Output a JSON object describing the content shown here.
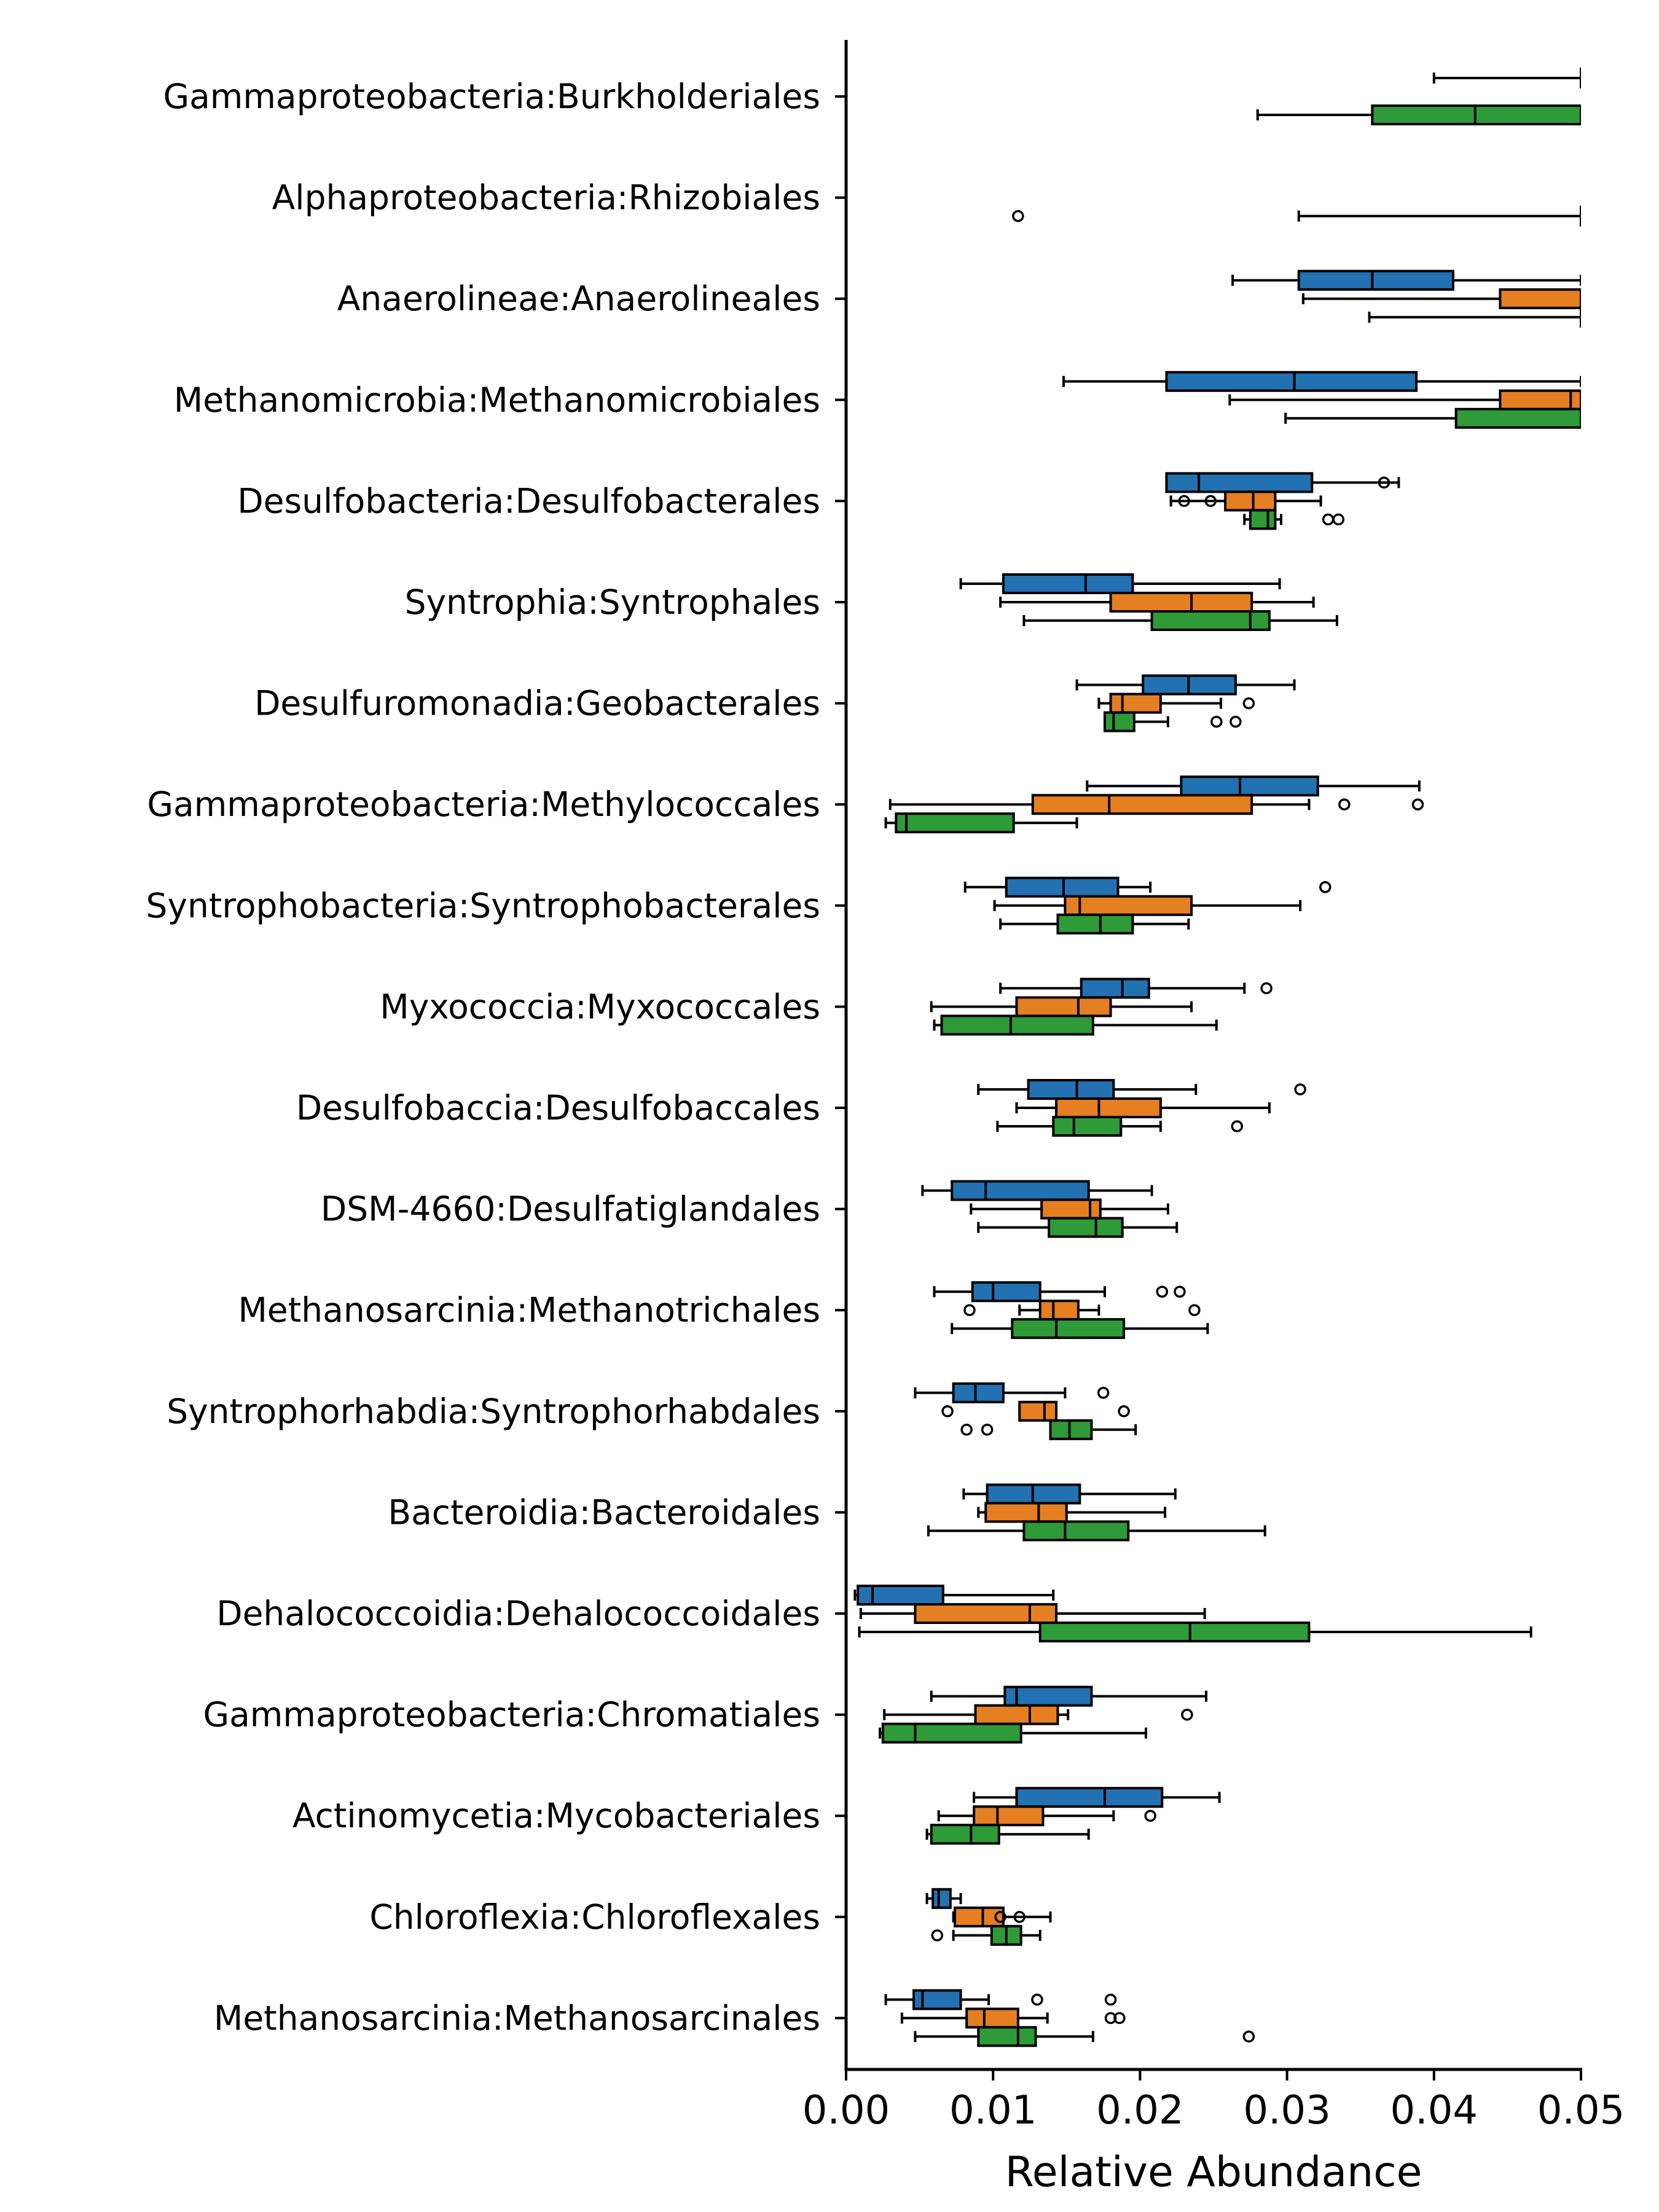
{
  "chart_data": {
    "type": "boxplot",
    "orientation": "horizontal",
    "xlabel": "Relative Abundance",
    "xlim": [
      0.0,
      0.05
    ],
    "xticks": [
      0.0,
      0.01,
      0.02,
      0.03,
      0.04,
      0.05
    ],
    "xtick_labels": [
      "0.00",
      "0.01",
      "0.02",
      "0.03",
      "0.04",
      "0.05"
    ],
    "grid": false,
    "legend": null,
    "series_colors": [
      "#2271b2",
      "#e67e22",
      "#2e9a38"
    ],
    "categories": [
      {
        "label": "Gammaproteobacteria:Burkholderiales",
        "boxes": [
          {
            "wlo": 0.04,
            "q1": 0.05,
            "med": 0.05,
            "q3": 0.05,
            "whi": 0.05
          },
          null,
          {
            "wlo": 0.028,
            "q1": 0.0358,
            "med": 0.0428,
            "q3": 0.05,
            "whi": 0.05
          }
        ]
      },
      {
        "label": "Alphaproteobacteria:Rhizobiales",
        "boxes": [
          null,
          null,
          {
            "wlo": 0.0308,
            "q1": 0.05,
            "med": 0.05,
            "q3": 0.05,
            "whi": 0.05,
            "fliers": [
              0.0117
            ]
          }
        ]
      },
      {
        "label": "Anaerolineae:Anaerolineales",
        "boxes": [
          {
            "wlo": 0.0263,
            "q1": 0.0308,
            "med": 0.0358,
            "q3": 0.0413,
            "whi": 0.05
          },
          {
            "wlo": 0.0311,
            "q1": 0.0445,
            "med": 0.05,
            "q3": 0.05,
            "whi": 0.05
          },
          {
            "wlo": 0.0356,
            "q1": 0.05,
            "med": 0.05,
            "q3": 0.05,
            "whi": 0.05
          }
        ]
      },
      {
        "label": "Methanomicrobia:Methanomicrobiales",
        "boxes": [
          {
            "wlo": 0.0148,
            "q1": 0.0218,
            "med": 0.0305,
            "q3": 0.0388,
            "whi": 0.05
          },
          {
            "wlo": 0.0261,
            "q1": 0.0445,
            "med": 0.0493,
            "q3": 0.05,
            "whi": 0.05
          },
          {
            "wlo": 0.0299,
            "q1": 0.0415,
            "med": 0.05,
            "q3": 0.05,
            "whi": 0.05
          }
        ]
      },
      {
        "label": "Desulfobacteria:Desulfobacterales",
        "boxes": [
          {
            "wlo": 0.0218,
            "q1": 0.0218,
            "med": 0.024,
            "q3": 0.0317,
            "whi": 0.0376,
            "fliers": [
              0.0366
            ]
          },
          {
            "wlo": 0.0221,
            "q1": 0.0258,
            "med": 0.0277,
            "q3": 0.0292,
            "whi": 0.0323,
            "fliers": [
              0.023,
              0.0248
            ]
          },
          {
            "wlo": 0.0271,
            "q1": 0.0275,
            "med": 0.0287,
            "q3": 0.0292,
            "whi": 0.0296,
            "fliers": [
              0.0328,
              0.0335
            ]
          }
        ]
      },
      {
        "label": "Syntrophia:Syntrophales",
        "boxes": [
          {
            "wlo": 0.0078,
            "q1": 0.0107,
            "med": 0.0163,
            "q3": 0.0195,
            "whi": 0.0295
          },
          {
            "wlo": 0.0105,
            "q1": 0.018,
            "med": 0.0235,
            "q3": 0.0276,
            "whi": 0.0318
          },
          {
            "wlo": 0.0121,
            "q1": 0.0208,
            "med": 0.0275,
            "q3": 0.0288,
            "whi": 0.0334
          }
        ]
      },
      {
        "label": "Desulfuromonadia:Geobacterales",
        "boxes": [
          {
            "wlo": 0.0157,
            "q1": 0.0202,
            "med": 0.0233,
            "q3": 0.0265,
            "whi": 0.0305
          },
          {
            "wlo": 0.0172,
            "q1": 0.018,
            "med": 0.0188,
            "q3": 0.0214,
            "whi": 0.0255,
            "fliers": [
              0.0274
            ]
          },
          {
            "wlo": 0.0176,
            "q1": 0.0176,
            "med": 0.0182,
            "q3": 0.0196,
            "whi": 0.0219,
            "fliers": [
              0.0252,
              0.0265
            ]
          }
        ]
      },
      {
        "label": "Gammaproteobacteria:Methylococcales",
        "boxes": [
          {
            "wlo": 0.0164,
            "q1": 0.0228,
            "med": 0.0268,
            "q3": 0.0321,
            "whi": 0.039
          },
          {
            "wlo": 0.003,
            "q1": 0.0127,
            "med": 0.0179,
            "q3": 0.0276,
            "whi": 0.0315,
            "fliers": [
              0.0339,
              0.0389
            ]
          },
          {
            "wlo": 0.0027,
            "q1": 0.0034,
            "med": 0.0041,
            "q3": 0.0114,
            "whi": 0.0157
          }
        ]
      },
      {
        "label": "Syntrophobacteria:Syntrophobacterales",
        "boxes": [
          {
            "wlo": 0.0081,
            "q1": 0.0109,
            "med": 0.0148,
            "q3": 0.0185,
            "whi": 0.0207,
            "fliers": [
              0.0326
            ]
          },
          {
            "wlo": 0.0101,
            "q1": 0.0149,
            "med": 0.0159,
            "q3": 0.0235,
            "whi": 0.0309
          },
          {
            "wlo": 0.0105,
            "q1": 0.0144,
            "med": 0.0173,
            "q3": 0.0195,
            "whi": 0.0233
          }
        ]
      },
      {
        "label": "Myxococcia:Myxococcales",
        "boxes": [
          {
            "wlo": 0.0105,
            "q1": 0.016,
            "med": 0.0188,
            "q3": 0.0206,
            "whi": 0.0271,
            "fliers": [
              0.0286
            ]
          },
          {
            "wlo": 0.0058,
            "q1": 0.0116,
            "med": 0.0158,
            "q3": 0.018,
            "whi": 0.0235
          },
          {
            "wlo": 0.006,
            "q1": 0.0065,
            "med": 0.0112,
            "q3": 0.0168,
            "whi": 0.0252
          }
        ]
      },
      {
        "label": "Desulfobaccia:Desulfobaccales",
        "boxes": [
          {
            "wlo": 0.009,
            "q1": 0.0124,
            "med": 0.0157,
            "q3": 0.0182,
            "whi": 0.0238,
            "fliers": [
              0.0309
            ]
          },
          {
            "wlo": 0.0116,
            "q1": 0.0143,
            "med": 0.0172,
            "q3": 0.0214,
            "whi": 0.0288
          },
          {
            "wlo": 0.0103,
            "q1": 0.0141,
            "med": 0.0155,
            "q3": 0.0187,
            "whi": 0.0214,
            "fliers": [
              0.0266
            ]
          }
        ]
      },
      {
        "label": "DSM-4660:Desulfatiglandales",
        "boxes": [
          {
            "wlo": 0.0052,
            "q1": 0.0072,
            "med": 0.0095,
            "q3": 0.0165,
            "whi": 0.0208
          },
          {
            "wlo": 0.0085,
            "q1": 0.0133,
            "med": 0.0166,
            "q3": 0.0173,
            "whi": 0.0219
          },
          {
            "wlo": 0.009,
            "q1": 0.0138,
            "med": 0.017,
            "q3": 0.0188,
            "whi": 0.0225
          }
        ]
      },
      {
        "label": "Methanosarcinia:Methanotrichales",
        "boxes": [
          {
            "wlo": 0.006,
            "q1": 0.0086,
            "med": 0.01,
            "q3": 0.0132,
            "whi": 0.0176,
            "fliers": [
              0.0215,
              0.0227
            ]
          },
          {
            "wlo": 0.0118,
            "q1": 0.0132,
            "med": 0.0141,
            "q3": 0.0158,
            "whi": 0.0172,
            "fliers": [
              0.0084,
              0.0237
            ]
          },
          {
            "wlo": 0.0072,
            "q1": 0.0113,
            "med": 0.0143,
            "q3": 0.0189,
            "whi": 0.0246
          }
        ]
      },
      {
        "label": "Syntrophorhabdia:Syntrophorhabdales",
        "boxes": [
          {
            "wlo": 0.0047,
            "q1": 0.0073,
            "med": 0.0088,
            "q3": 0.0107,
            "whi": 0.0149,
            "fliers": [
              0.0175
            ]
          },
          {
            "wlo": 0.0118,
            "q1": 0.0118,
            "med": 0.0135,
            "q3": 0.0143,
            "whi": 0.0143,
            "fliers": [
              0.0069,
              0.0189
            ]
          },
          {
            "wlo": 0.0139,
            "q1": 0.0139,
            "med": 0.0152,
            "q3": 0.0167,
            "whi": 0.0197,
            "fliers": [
              0.0082,
              0.0096
            ]
          }
        ]
      },
      {
        "label": "Bacteroidia:Bacteroidales",
        "boxes": [
          {
            "wlo": 0.008,
            "q1": 0.0096,
            "med": 0.0127,
            "q3": 0.0159,
            "whi": 0.0224
          },
          {
            "wlo": 0.009,
            "q1": 0.0095,
            "med": 0.0131,
            "q3": 0.015,
            "whi": 0.0217
          },
          {
            "wlo": 0.0056,
            "q1": 0.0121,
            "med": 0.0149,
            "q3": 0.0192,
            "whi": 0.0285
          }
        ]
      },
      {
        "label": "Dehalococcoidia:Dehalococcoidales",
        "boxes": [
          {
            "wlo": 0.0006,
            "q1": 0.0008,
            "med": 0.0018,
            "q3": 0.0066,
            "whi": 0.0141
          },
          {
            "wlo": 0.001,
            "q1": 0.0047,
            "med": 0.0125,
            "q3": 0.0143,
            "whi": 0.0244
          },
          {
            "wlo": 0.0009,
            "q1": 0.0132,
            "med": 0.0234,
            "q3": 0.0315,
            "whi": 0.0466
          }
        ]
      },
      {
        "label": "Gammaproteobacteria:Chromatiales",
        "boxes": [
          {
            "wlo": 0.0058,
            "q1": 0.0108,
            "med": 0.0116,
            "q3": 0.0167,
            "whi": 0.0245
          },
          {
            "wlo": 0.0026,
            "q1": 0.0088,
            "med": 0.0125,
            "q3": 0.0144,
            "whi": 0.0151,
            "fliers": [
              0.0232
            ]
          },
          {
            "wlo": 0.0023,
            "q1": 0.0025,
            "med": 0.0047,
            "q3": 0.0119,
            "whi": 0.0204
          }
        ]
      },
      {
        "label": "Actinomycetia:Mycobacteriales",
        "boxes": [
          {
            "wlo": 0.0087,
            "q1": 0.0116,
            "med": 0.0176,
            "q3": 0.0215,
            "whi": 0.0254
          },
          {
            "wlo": 0.0063,
            "q1": 0.0087,
            "med": 0.0103,
            "q3": 0.0134,
            "whi": 0.0182,
            "fliers": [
              0.0207
            ]
          },
          {
            "wlo": 0.0055,
            "q1": 0.0058,
            "med": 0.0085,
            "q3": 0.0104,
            "whi": 0.0165
          }
        ]
      },
      {
        "label": "Chloroflexia:Chloroflexales",
        "boxes": [
          {
            "wlo": 0.0055,
            "q1": 0.0059,
            "med": 0.0063,
            "q3": 0.0071,
            "whi": 0.0078
          },
          {
            "wlo": 0.0073,
            "q1": 0.0074,
            "med": 0.0093,
            "q3": 0.0107,
            "whi": 0.0139,
            "fliers": [
              0.0105,
              0.0118
            ]
          },
          {
            "wlo": 0.0073,
            "q1": 0.0099,
            "med": 0.0109,
            "q3": 0.0119,
            "whi": 0.0132,
            "fliers": [
              0.0062
            ]
          }
        ]
      },
      {
        "label": "Methanosarcinia:Methanosarcinales",
        "boxes": [
          {
            "wlo": 0.0027,
            "q1": 0.0046,
            "med": 0.0052,
            "q3": 0.0078,
            "whi": 0.0097,
            "fliers": [
              0.013,
              0.018
            ]
          },
          {
            "wlo": 0.0038,
            "q1": 0.0082,
            "med": 0.0094,
            "q3": 0.0117,
            "whi": 0.0137,
            "fliers": [
              0.018,
              0.0186
            ]
          },
          {
            "wlo": 0.0047,
            "q1": 0.009,
            "med": 0.0117,
            "q3": 0.0129,
            "whi": 0.0168,
            "fliers": [
              0.0274
            ]
          }
        ]
      }
    ]
  }
}
